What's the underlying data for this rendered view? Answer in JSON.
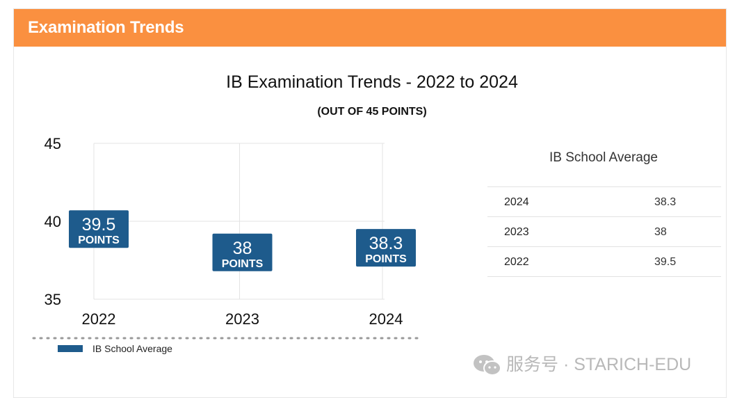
{
  "header": {
    "title": "Examination Trends"
  },
  "chart_data": {
    "type": "scatter",
    "title": "IB Examination Trends - 2022 to 2024",
    "subtitle": "(OUT OF 45 POINTS)",
    "categories": [
      "2022",
      "2023",
      "2024"
    ],
    "series": [
      {
        "name": "IB School Average",
        "values": [
          39.5,
          38,
          38.3
        ],
        "labels": [
          "39.5",
          "38",
          "38.3"
        ],
        "label_unit": "POINTS"
      }
    ],
    "y_ticks": [
      "45",
      "40",
      "35"
    ],
    "ylim": [
      35,
      45
    ],
    "grid": true,
    "legend": "bottom-left",
    "colors": {
      "marker": "#1e5b8c",
      "grid": "#e3e3e3"
    }
  },
  "table": {
    "title": "IB School Average",
    "rows": [
      {
        "year": "2024",
        "value": "38.3"
      },
      {
        "year": "2023",
        "value": "38"
      },
      {
        "year": "2022",
        "value": "39.5"
      }
    ]
  },
  "watermark": {
    "text": "服务号 · STARICH-EDU",
    "icon": "wechat-icon"
  },
  "colors": {
    "header": "#fa9040"
  }
}
